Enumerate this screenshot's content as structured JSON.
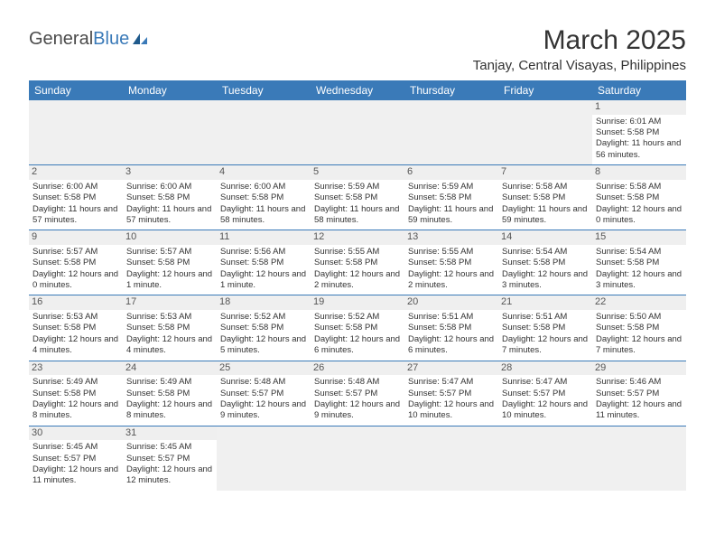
{
  "logo": {
    "text1": "General",
    "text2": "Blue"
  },
  "title": "March 2025",
  "location": "Tanjay, Central Visayas, Philippines",
  "header_bg": "#3a7ab8",
  "weekday_text_color": "#ffffff",
  "day_num_bg": "#efefef",
  "empty_bg": "#f0f0f0",
  "row_border": "#3a7ab8",
  "weekdays": [
    "Sunday",
    "Monday",
    "Tuesday",
    "Wednesday",
    "Thursday",
    "Friday",
    "Saturday"
  ],
  "weeks": [
    [
      {
        "empty": true
      },
      {
        "empty": true
      },
      {
        "empty": true
      },
      {
        "empty": true
      },
      {
        "empty": true
      },
      {
        "empty": true
      },
      {
        "day": "1",
        "sunrise": "Sunrise: 6:01 AM",
        "sunset": "Sunset: 5:58 PM",
        "daylight": "Daylight: 11 hours and 56 minutes."
      }
    ],
    [
      {
        "day": "2",
        "sunrise": "Sunrise: 6:00 AM",
        "sunset": "Sunset: 5:58 PM",
        "daylight": "Daylight: 11 hours and 57 minutes."
      },
      {
        "day": "3",
        "sunrise": "Sunrise: 6:00 AM",
        "sunset": "Sunset: 5:58 PM",
        "daylight": "Daylight: 11 hours and 57 minutes."
      },
      {
        "day": "4",
        "sunrise": "Sunrise: 6:00 AM",
        "sunset": "Sunset: 5:58 PM",
        "daylight": "Daylight: 11 hours and 58 minutes."
      },
      {
        "day": "5",
        "sunrise": "Sunrise: 5:59 AM",
        "sunset": "Sunset: 5:58 PM",
        "daylight": "Daylight: 11 hours and 58 minutes."
      },
      {
        "day": "6",
        "sunrise": "Sunrise: 5:59 AM",
        "sunset": "Sunset: 5:58 PM",
        "daylight": "Daylight: 11 hours and 59 minutes."
      },
      {
        "day": "7",
        "sunrise": "Sunrise: 5:58 AM",
        "sunset": "Sunset: 5:58 PM",
        "daylight": "Daylight: 11 hours and 59 minutes."
      },
      {
        "day": "8",
        "sunrise": "Sunrise: 5:58 AM",
        "sunset": "Sunset: 5:58 PM",
        "daylight": "Daylight: 12 hours and 0 minutes."
      }
    ],
    [
      {
        "day": "9",
        "sunrise": "Sunrise: 5:57 AM",
        "sunset": "Sunset: 5:58 PM",
        "daylight": "Daylight: 12 hours and 0 minutes."
      },
      {
        "day": "10",
        "sunrise": "Sunrise: 5:57 AM",
        "sunset": "Sunset: 5:58 PM",
        "daylight": "Daylight: 12 hours and 1 minute."
      },
      {
        "day": "11",
        "sunrise": "Sunrise: 5:56 AM",
        "sunset": "Sunset: 5:58 PM",
        "daylight": "Daylight: 12 hours and 1 minute."
      },
      {
        "day": "12",
        "sunrise": "Sunrise: 5:55 AM",
        "sunset": "Sunset: 5:58 PM",
        "daylight": "Daylight: 12 hours and 2 minutes."
      },
      {
        "day": "13",
        "sunrise": "Sunrise: 5:55 AM",
        "sunset": "Sunset: 5:58 PM",
        "daylight": "Daylight: 12 hours and 2 minutes."
      },
      {
        "day": "14",
        "sunrise": "Sunrise: 5:54 AM",
        "sunset": "Sunset: 5:58 PM",
        "daylight": "Daylight: 12 hours and 3 minutes."
      },
      {
        "day": "15",
        "sunrise": "Sunrise: 5:54 AM",
        "sunset": "Sunset: 5:58 PM",
        "daylight": "Daylight: 12 hours and 3 minutes."
      }
    ],
    [
      {
        "day": "16",
        "sunrise": "Sunrise: 5:53 AM",
        "sunset": "Sunset: 5:58 PM",
        "daylight": "Daylight: 12 hours and 4 minutes."
      },
      {
        "day": "17",
        "sunrise": "Sunrise: 5:53 AM",
        "sunset": "Sunset: 5:58 PM",
        "daylight": "Daylight: 12 hours and 4 minutes."
      },
      {
        "day": "18",
        "sunrise": "Sunrise: 5:52 AM",
        "sunset": "Sunset: 5:58 PM",
        "daylight": "Daylight: 12 hours and 5 minutes."
      },
      {
        "day": "19",
        "sunrise": "Sunrise: 5:52 AM",
        "sunset": "Sunset: 5:58 PM",
        "daylight": "Daylight: 12 hours and 6 minutes."
      },
      {
        "day": "20",
        "sunrise": "Sunrise: 5:51 AM",
        "sunset": "Sunset: 5:58 PM",
        "daylight": "Daylight: 12 hours and 6 minutes."
      },
      {
        "day": "21",
        "sunrise": "Sunrise: 5:51 AM",
        "sunset": "Sunset: 5:58 PM",
        "daylight": "Daylight: 12 hours and 7 minutes."
      },
      {
        "day": "22",
        "sunrise": "Sunrise: 5:50 AM",
        "sunset": "Sunset: 5:58 PM",
        "daylight": "Daylight: 12 hours and 7 minutes."
      }
    ],
    [
      {
        "day": "23",
        "sunrise": "Sunrise: 5:49 AM",
        "sunset": "Sunset: 5:58 PM",
        "daylight": "Daylight: 12 hours and 8 minutes."
      },
      {
        "day": "24",
        "sunrise": "Sunrise: 5:49 AM",
        "sunset": "Sunset: 5:58 PM",
        "daylight": "Daylight: 12 hours and 8 minutes."
      },
      {
        "day": "25",
        "sunrise": "Sunrise: 5:48 AM",
        "sunset": "Sunset: 5:57 PM",
        "daylight": "Daylight: 12 hours and 9 minutes."
      },
      {
        "day": "26",
        "sunrise": "Sunrise: 5:48 AM",
        "sunset": "Sunset: 5:57 PM",
        "daylight": "Daylight: 12 hours and 9 minutes."
      },
      {
        "day": "27",
        "sunrise": "Sunrise: 5:47 AM",
        "sunset": "Sunset: 5:57 PM",
        "daylight": "Daylight: 12 hours and 10 minutes."
      },
      {
        "day": "28",
        "sunrise": "Sunrise: 5:47 AM",
        "sunset": "Sunset: 5:57 PM",
        "daylight": "Daylight: 12 hours and 10 minutes."
      },
      {
        "day": "29",
        "sunrise": "Sunrise: 5:46 AM",
        "sunset": "Sunset: 5:57 PM",
        "daylight": "Daylight: 12 hours and 11 minutes."
      }
    ],
    [
      {
        "day": "30",
        "sunrise": "Sunrise: 5:45 AM",
        "sunset": "Sunset: 5:57 PM",
        "daylight": "Daylight: 12 hours and 11 minutes."
      },
      {
        "day": "31",
        "sunrise": "Sunrise: 5:45 AM",
        "sunset": "Sunset: 5:57 PM",
        "daylight": "Daylight: 12 hours and 12 minutes."
      },
      {
        "empty": true
      },
      {
        "empty": true
      },
      {
        "empty": true
      },
      {
        "empty": true
      },
      {
        "empty": true
      }
    ]
  ]
}
